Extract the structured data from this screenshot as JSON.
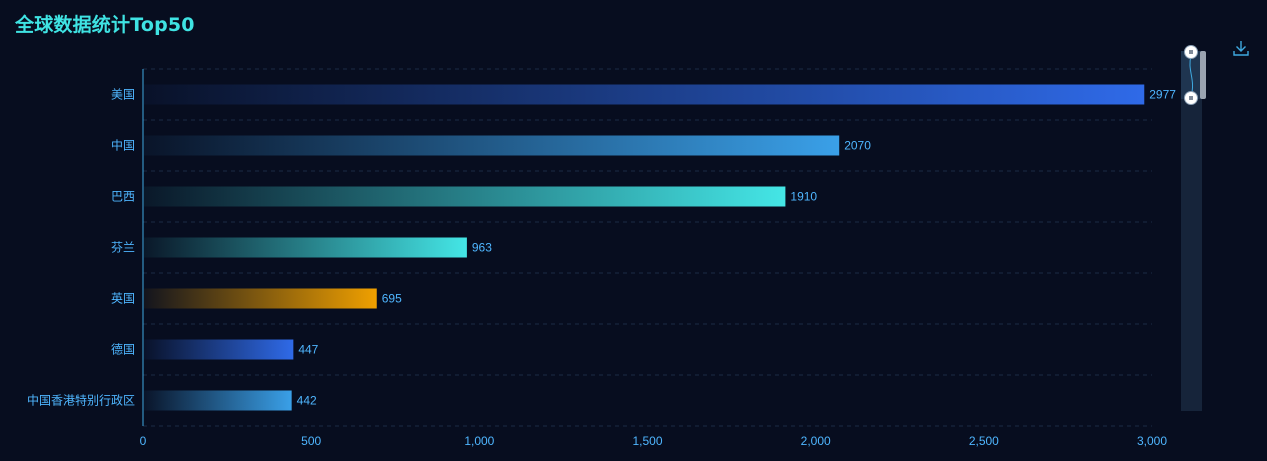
{
  "header": {
    "title": "全球数据统计Top50"
  },
  "toolbar": {
    "download_icon": "download-icon"
  },
  "colors": {
    "background": "#070d1f",
    "title": "#3fe3e3",
    "label": "#4fb6ff",
    "axis": "#3fa9e0",
    "grid": "#1b2a44",
    "zoom_track": "#16243a",
    "zoom_handle": "#9aa3b0"
  },
  "chart_data": {
    "type": "bar",
    "orientation": "horizontal",
    "title": "全球数据统计Top50",
    "categories": [
      "美国",
      "中国",
      "巴西",
      "芬兰",
      "英国",
      "德国",
      "中国香港特别行政区"
    ],
    "values": [
      2977,
      2070,
      1910,
      963,
      695,
      447,
      442
    ],
    "data_labels": [
      "2977",
      "2070",
      "1910",
      "963",
      "695",
      "447",
      "442"
    ],
    "bar_colors": [
      "#2f6ae8",
      "#3aa0e8",
      "#44e6e6",
      "#44e6e6",
      "#f0a000",
      "#2f6ae8",
      "#3aa0e8"
    ],
    "xlim": [
      0,
      3000
    ],
    "x_ticks": [
      0,
      500,
      1000,
      1500,
      2000,
      2500,
      3000
    ],
    "x_tick_labels": [
      "0",
      "500",
      "1,000",
      "1,500",
      "2,000",
      "2,500",
      "3,000"
    ],
    "grid": true,
    "datazoom": "vertical slider on right",
    "legend": "none"
  }
}
